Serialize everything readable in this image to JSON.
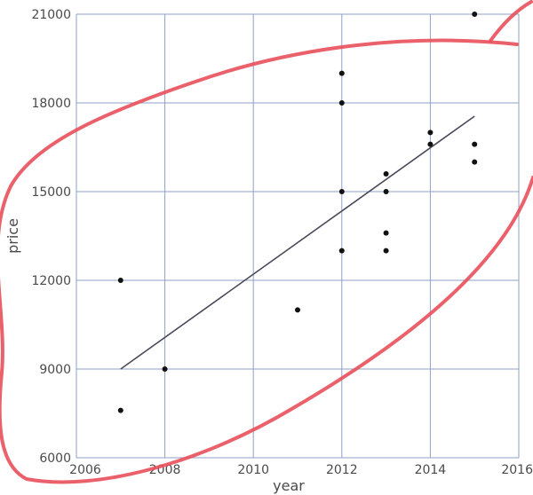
{
  "chart_data": {
    "type": "scatter",
    "xlabel": "year",
    "ylabel": "price",
    "xlim": [
      2006,
      2016
    ],
    "ylim": [
      6000,
      21000
    ],
    "xticks": [
      2006,
      2008,
      2010,
      2012,
      2014,
      2016
    ],
    "yticks": [
      6000,
      9000,
      12000,
      15000,
      18000,
      21000
    ],
    "grid": true,
    "points": [
      {
        "x": 2007,
        "y": 12000
      },
      {
        "x": 2007,
        "y": 7600
      },
      {
        "x": 2008,
        "y": 9000
      },
      {
        "x": 2011,
        "y": 11000
      },
      {
        "x": 2012,
        "y": 19000
      },
      {
        "x": 2012,
        "y": 18000
      },
      {
        "x": 2012,
        "y": 15000
      },
      {
        "x": 2012,
        "y": 13000
      },
      {
        "x": 2013,
        "y": 15600
      },
      {
        "x": 2013,
        "y": 15000
      },
      {
        "x": 2013,
        "y": 13600
      },
      {
        "x": 2013,
        "y": 13000
      },
      {
        "x": 2014,
        "y": 17000
      },
      {
        "x": 2014,
        "y": 16600
      },
      {
        "x": 2015,
        "y": 21000
      },
      {
        "x": 2015,
        "y": 16600
      },
      {
        "x": 2015,
        "y": 16000
      }
    ],
    "trend_line": {
      "x": [
        2007,
        2015
      ],
      "y": [
        9000,
        17550
      ]
    },
    "annotation": {
      "shape": "hand-drawn ellipse",
      "color": "#e8505b"
    }
  }
}
